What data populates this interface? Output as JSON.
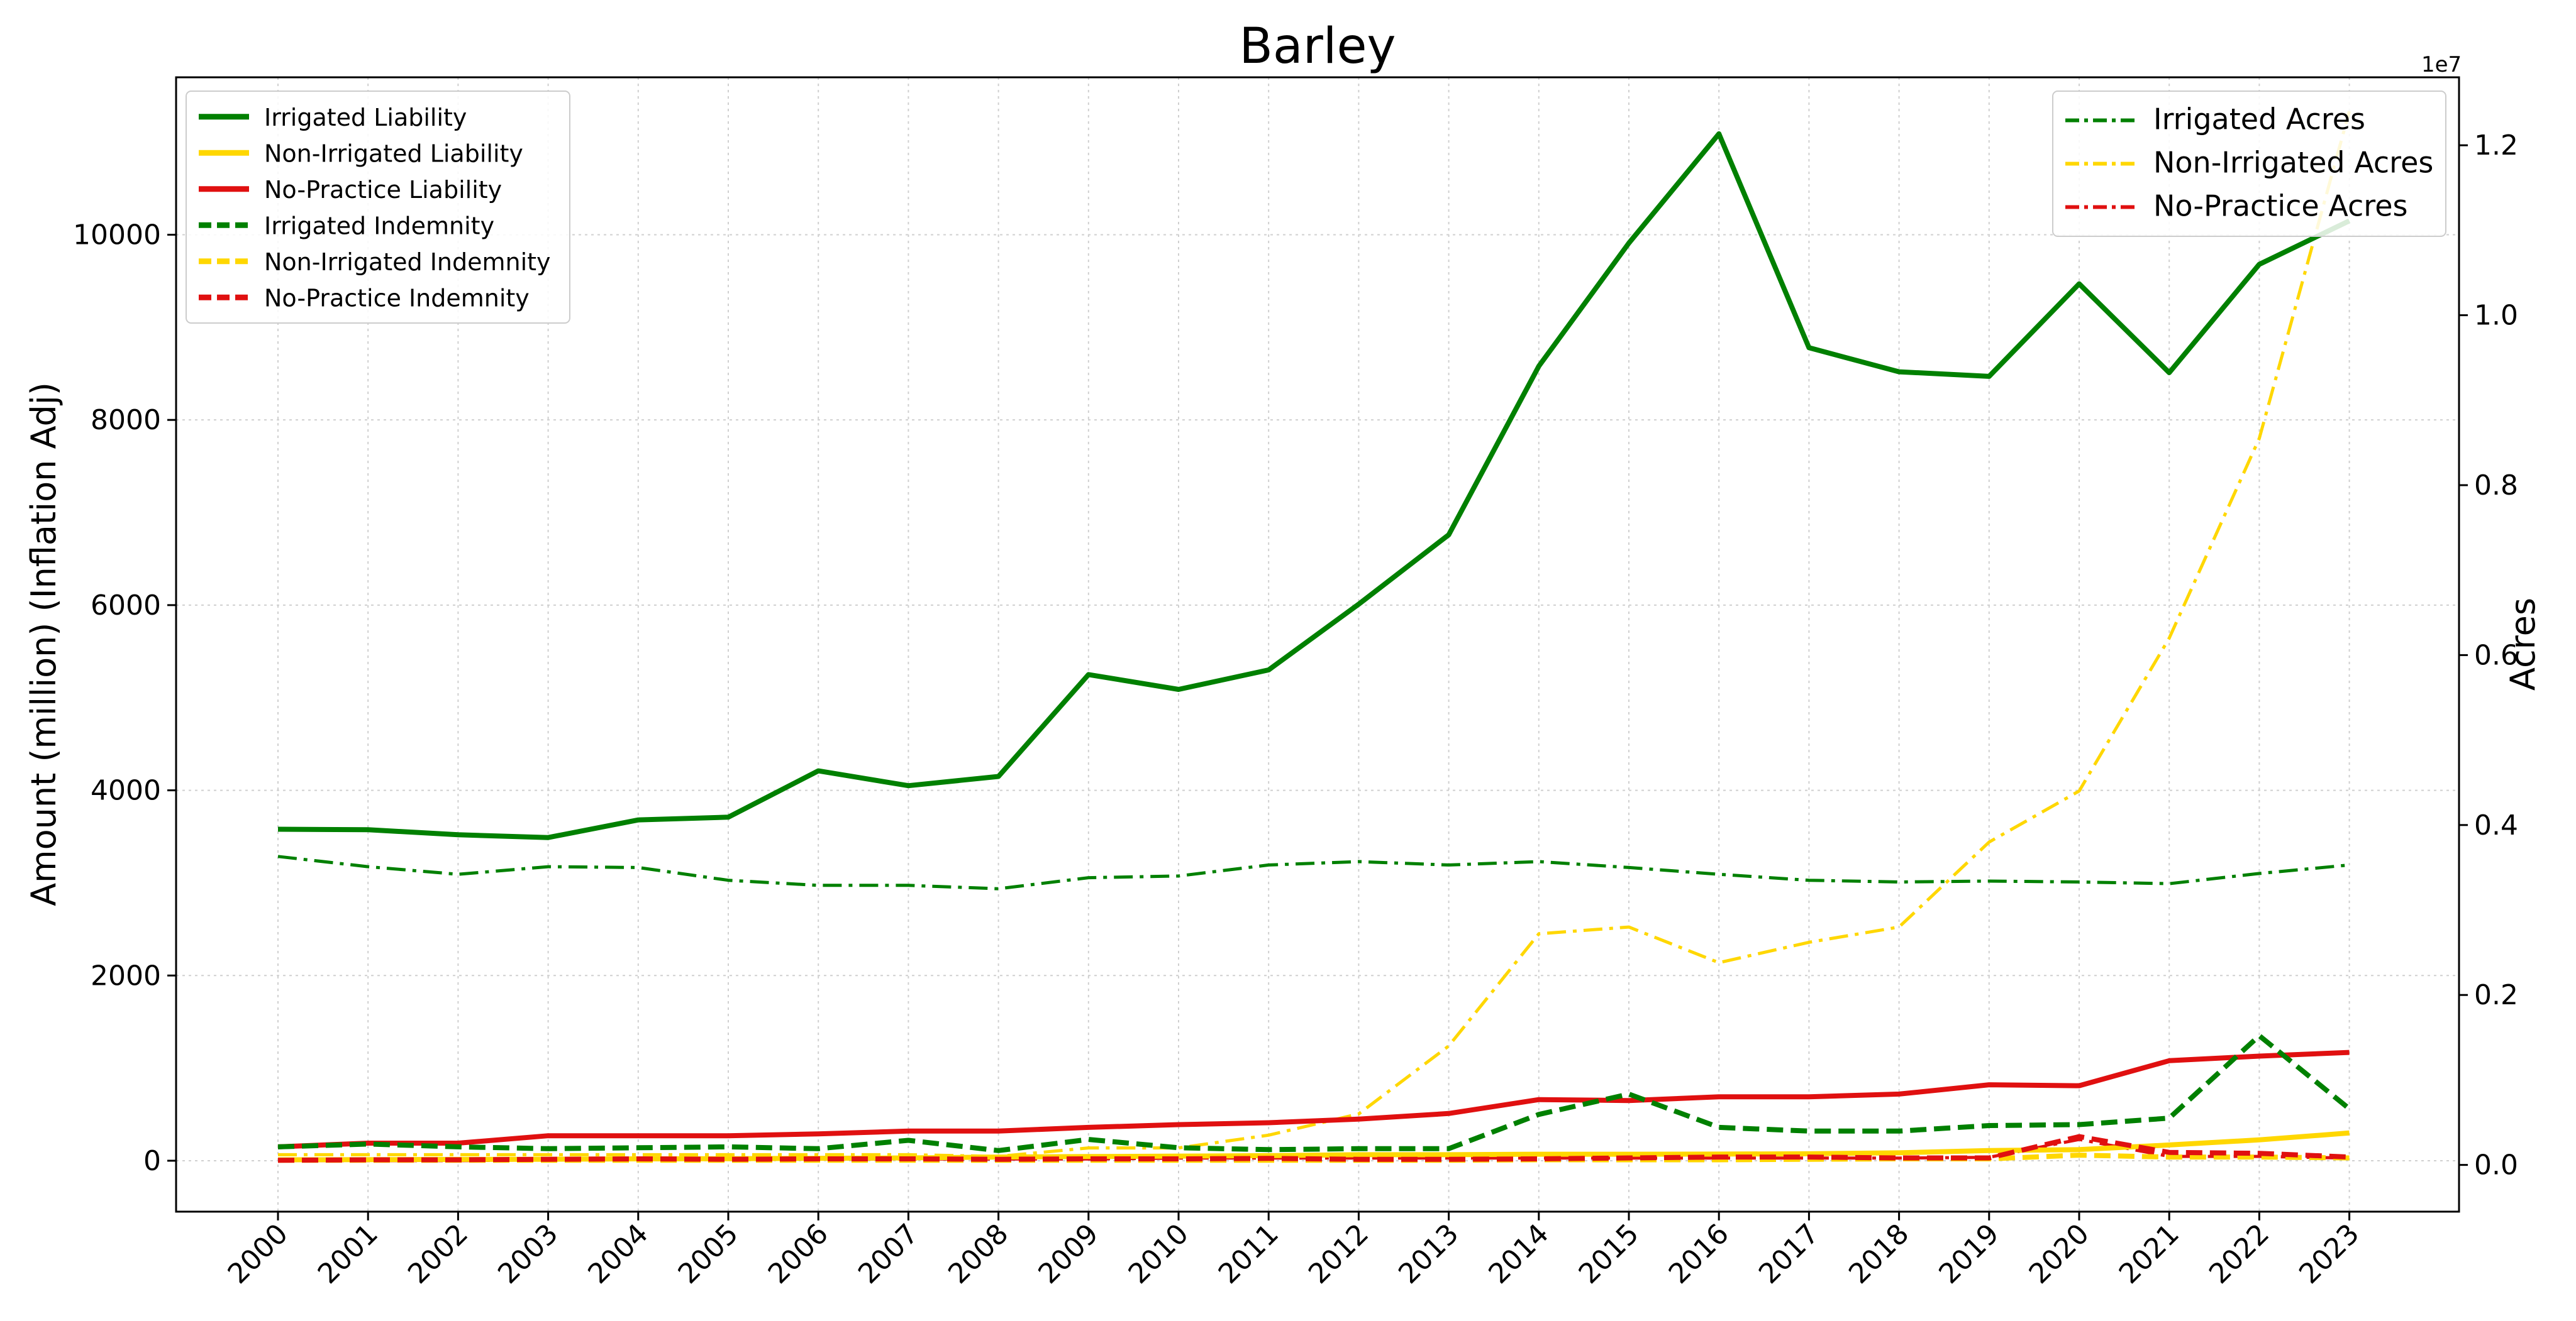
{
  "chart_data": {
    "type": "line",
    "title": "Barley",
    "xlabel": "",
    "ylabel": "Amount (million) (Inflation Adj)",
    "ylabel_right": "Acres",
    "right_axis_exponent": "1e7",
    "x": [
      2000,
      2001,
      2002,
      2003,
      2004,
      2005,
      2006,
      2007,
      2008,
      2009,
      2010,
      2011,
      2012,
      2013,
      2014,
      2015,
      2016,
      2017,
      2018,
      2019,
      2020,
      2021,
      2022,
      2023
    ],
    "x_tick_labels": [
      "2000",
      "2001",
      "2002",
      "2003",
      "2004",
      "2005",
      "2006",
      "2007",
      "2008",
      "2009",
      "2010",
      "2011",
      "2012",
      "2013",
      "2014",
      "2015",
      "2016",
      "2017",
      "2018",
      "2019",
      "2020",
      "2021",
      "2022",
      "2023"
    ],
    "ylim_left": [
      -550,
      11700
    ],
    "left_ticks": [
      0,
      2000,
      4000,
      6000,
      8000,
      10000
    ],
    "left_tick_labels": [
      "0",
      "2000",
      "4000",
      "6000",
      "8000",
      "10000"
    ],
    "ylim_right": [
      -0.055,
      1.28
    ],
    "right_ticks": [
      0.0,
      0.2,
      0.4,
      0.6,
      0.8,
      1.0,
      1.2
    ],
    "right_tick_labels": [
      "0.0",
      "0.2",
      "0.4",
      "0.6",
      "0.8",
      "1.0",
      "1.2"
    ],
    "grid": true,
    "legend_left_placement": "top-left",
    "legend_right_placement": "top-right",
    "series": [
      {
        "name": "Irrigated Liability",
        "axis": "left",
        "color": "#008000",
        "dash": "solid",
        "values": [
          3580,
          3575,
          3520,
          3490,
          3680,
          3710,
          4210,
          4050,
          4150,
          5250,
          5090,
          5300,
          6010,
          6760,
          8580,
          9910,
          11090,
          8780,
          8520,
          8470,
          9470,
          8510,
          9680,
          10150
        ]
      },
      {
        "name": "Non-Irrigated Liability",
        "axis": "left",
        "color": "#FFD700",
        "dash": "solid",
        "values": [
          10,
          12,
          14,
          16,
          20,
          22,
          26,
          30,
          40,
          45,
          50,
          55,
          65,
          65,
          70,
          70,
          72,
          75,
          85,
          110,
          120,
          170,
          225,
          300
        ]
      },
      {
        "name": "No-Practice Liability",
        "axis": "left",
        "color": "#E01010",
        "dash": "solid",
        "values": [
          150,
          190,
          190,
          270,
          270,
          270,
          290,
          320,
          320,
          360,
          390,
          410,
          450,
          510,
          660,
          650,
          690,
          690,
          720,
          820,
          810,
          1080,
          1130,
          1170
        ]
      },
      {
        "name": "Irrigated Indemnity",
        "axis": "left",
        "color": "#008000",
        "dash": "dashed",
        "values": [
          150,
          180,
          150,
          130,
          140,
          150,
          130,
          220,
          110,
          230,
          140,
          120,
          130,
          130,
          500,
          720,
          360,
          320,
          320,
          380,
          390,
          460,
          1350,
          560
        ]
      },
      {
        "name": "Non-Irrigated Indemnity",
        "axis": "left",
        "color": "#FFD700",
        "dash": "dashed",
        "values": [
          5,
          5,
          5,
          5,
          5,
          5,
          5,
          5,
          5,
          5,
          5,
          5,
          5,
          5,
          10,
          10,
          10,
          15,
          20,
          20,
          60,
          40,
          40,
          30
        ]
      },
      {
        "name": "No-Practice Indemnity",
        "axis": "left",
        "color": "#E01010",
        "dash": "dashed",
        "values": [
          5,
          10,
          10,
          15,
          20,
          15,
          20,
          20,
          15,
          20,
          20,
          25,
          15,
          15,
          20,
          30,
          40,
          40,
          30,
          30,
          260,
          90,
          80,
          40
        ]
      },
      {
        "name": "Irrigated Acres",
        "axis": "right",
        "color": "#008000",
        "dash": "dashdot",
        "values": [
          0.363,
          0.351,
          0.342,
          0.351,
          0.35,
          0.335,
          0.329,
          0.329,
          0.325,
          0.338,
          0.34,
          0.353,
          0.357,
          0.353,
          0.357,
          0.35,
          0.342,
          0.335,
          0.333,
          0.334,
          0.333,
          0.331,
          0.343,
          0.353
        ]
      },
      {
        "name": "Non-Irrigated Acres",
        "axis": "right",
        "color": "#FFD700",
        "dash": "dashdot",
        "values": [
          0.012,
          0.012,
          0.012,
          0.012,
          0.012,
          0.012,
          0.012,
          0.012,
          0.01,
          0.02,
          0.02,
          0.035,
          0.06,
          0.14,
          0.272,
          0.28,
          0.238,
          0.262,
          0.28,
          0.38,
          0.44,
          0.62,
          0.855,
          1.24
        ]
      },
      {
        "name": "No-Practice Acres",
        "axis": "right",
        "color": "#E01010",
        "dash": "dashdot",
        "values": [
          0.005,
          0.005,
          0.005,
          0.006,
          0.006,
          0.007,
          0.007,
          0.007,
          0.007,
          0.007,
          0.008,
          0.008,
          0.008,
          0.008,
          0.008,
          0.008,
          0.008,
          0.008,
          0.008,
          0.009,
          0.03,
          0.01,
          0.01,
          0.008
        ]
      }
    ],
    "legend_left": [
      "Irrigated Liability",
      "Non-Irrigated Liability",
      "No-Practice Liability",
      "Irrigated Indemnity",
      "Non-Irrigated Indemnity",
      "No-Practice Indemnity"
    ],
    "legend_right": [
      "Irrigated Acres",
      "Non-Irrigated Acres",
      "No-Practice Acres"
    ]
  }
}
